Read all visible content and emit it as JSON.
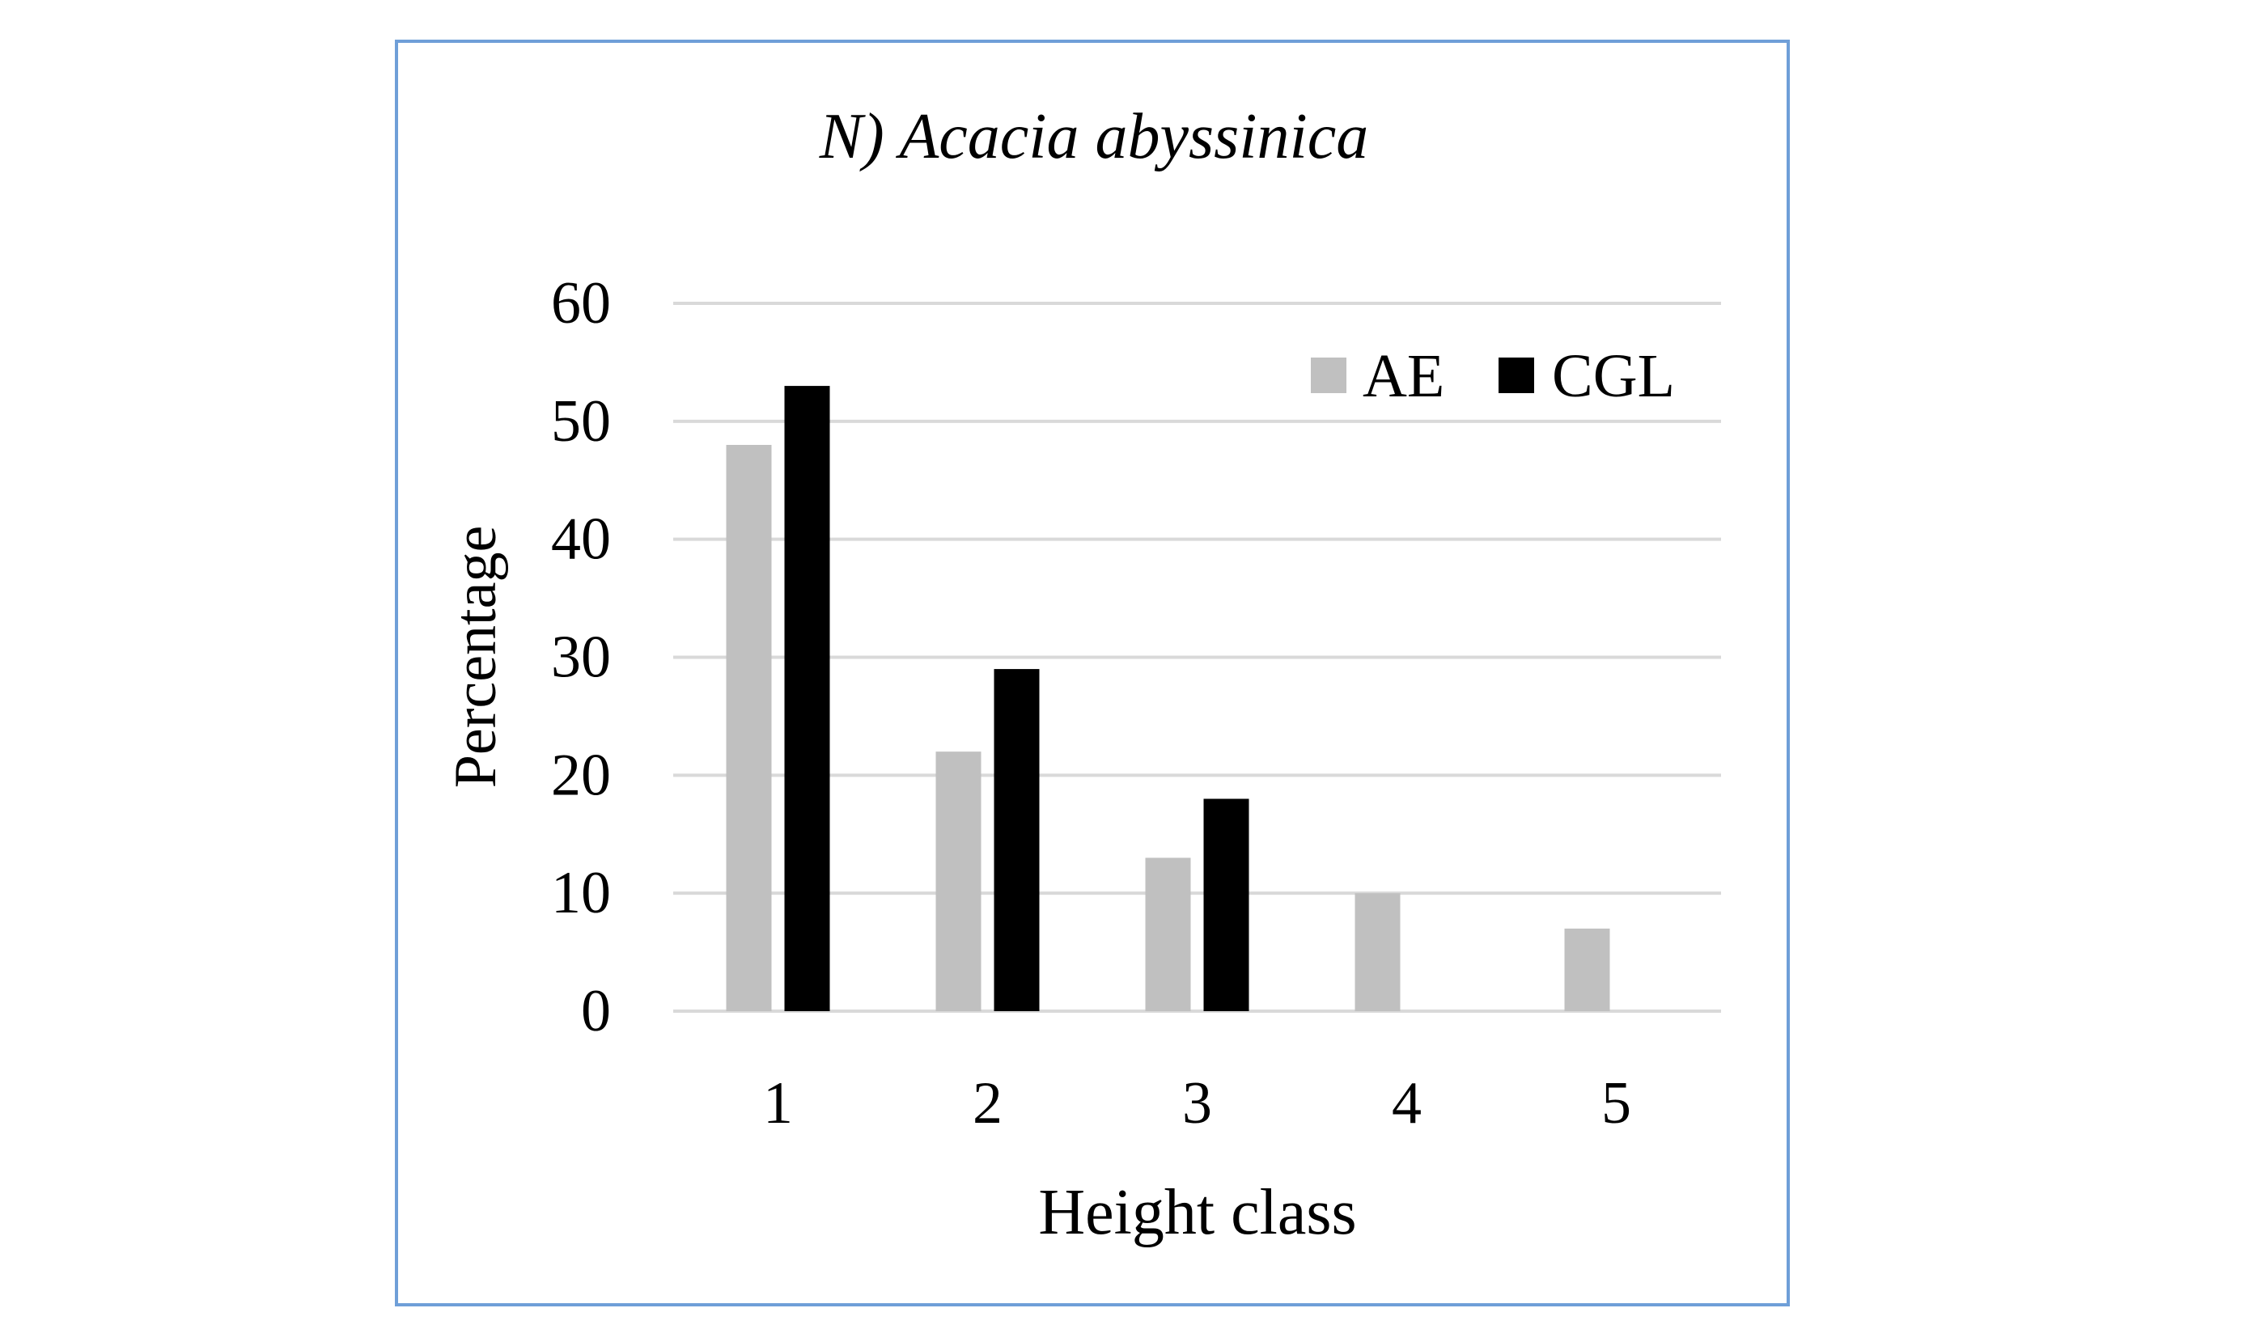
{
  "chart_data": {
    "type": "bar",
    "title": "N) Acacia abyssinica",
    "xlabel": "Height class",
    "ylabel": "Percentage",
    "categories": [
      "1",
      "2",
      "3",
      "4",
      "5"
    ],
    "ylim": [
      0,
      60
    ],
    "yticks": [
      "0",
      "10",
      "20",
      "30",
      "40",
      "50",
      "60"
    ],
    "grid": true,
    "legend_position": "top-right",
    "series": [
      {
        "name": "AE",
        "color": "#c0c0c0",
        "values": [
          48,
          22,
          13,
          10,
          7
        ]
      },
      {
        "name": "CGL",
        "color": "#000000",
        "values": [
          53,
          29,
          18,
          0,
          0
        ]
      }
    ]
  }
}
